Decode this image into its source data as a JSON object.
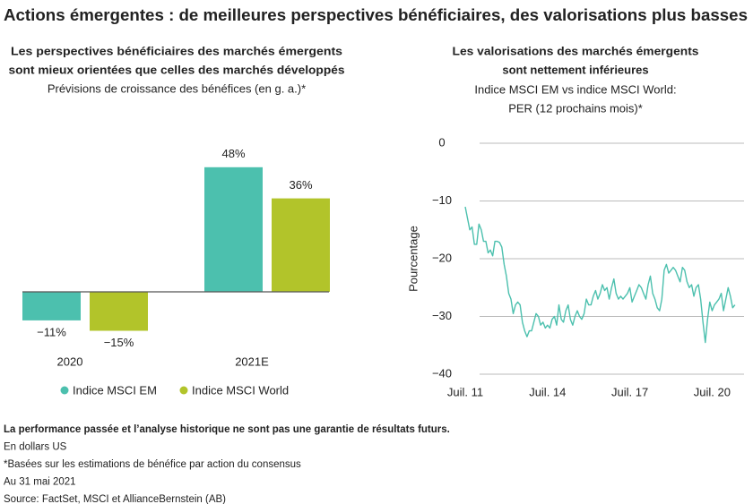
{
  "title": "Actions émergentes : de meilleures perspectives bénéficiaires, des valorisations plus basses",
  "chart_data": [
    {
      "type": "bar",
      "title": [
        "Les perspectives bénéficiaires des marchés émergents",
        "sont mieux orientées que celles des marchés développés"
      ],
      "subtitle": "Prévisions de croissance des bénéfices (en g. a.)*",
      "categories": [
        "2020",
        "2021E"
      ],
      "series": [
        {
          "name": "Indice MSCI EM",
          "color": "#4cc0ae",
          "values": [
            -11,
            48
          ],
          "value_labels": [
            "−11%",
            "48%"
          ]
        },
        {
          "name": "Indice MSCI World",
          "color": "#b2c42a",
          "values": [
            -15,
            36
          ],
          "value_labels": [
            "−15%",
            "36%"
          ]
        }
      ]
    },
    {
      "type": "line",
      "title": [
        "Les valorisations des marchés émergents",
        "sont nettement inférieures"
      ],
      "subtitle": [
        "Indice MSCI EM vs indice MSCI World:",
        "PER (12 prochains mois)*"
      ],
      "ylabel": "Pourcentage",
      "color": "#4cc0ae",
      "grid": true,
      "ylim": [
        -40,
        0
      ],
      "yticks": [
        {
          "value": 0,
          "label": "0"
        },
        {
          "value": -10,
          "label": "−10"
        },
        {
          "value": -20,
          "label": "−20"
        },
        {
          "value": -30,
          "label": "−30"
        },
        {
          "value": -40,
          "label": "−40"
        }
      ],
      "xlim": [
        "2011-07",
        "2021-05"
      ],
      "xticks": [
        {
          "value": "2011-07",
          "label": "Juil. 11"
        },
        {
          "value": "2014-07",
          "label": "Juil. 14"
        },
        {
          "value": "2017-07",
          "label": "Juil. 17"
        },
        {
          "value": "2020-07",
          "label": "Juil. 20"
        }
      ],
      "x": [
        "2011-07",
        "2011-08",
        "2011-09",
        "2011-10",
        "2011-11",
        "2011-12",
        "2012-01",
        "2012-02",
        "2012-03",
        "2012-04",
        "2012-05",
        "2012-06",
        "2012-07",
        "2012-08",
        "2012-09",
        "2012-10",
        "2012-11",
        "2012-12",
        "2013-01",
        "2013-02",
        "2013-03",
        "2013-04",
        "2013-05",
        "2013-06",
        "2013-07",
        "2013-08",
        "2013-09",
        "2013-10",
        "2013-11",
        "2013-12",
        "2014-01",
        "2014-02",
        "2014-03",
        "2014-04",
        "2014-05",
        "2014-06",
        "2014-07",
        "2014-08",
        "2014-09",
        "2014-10",
        "2014-11",
        "2014-12",
        "2015-01",
        "2015-02",
        "2015-03",
        "2015-04",
        "2015-05",
        "2015-06",
        "2015-07",
        "2015-08",
        "2015-09",
        "2015-10",
        "2015-11",
        "2015-12",
        "2016-01",
        "2016-02",
        "2016-03",
        "2016-04",
        "2016-05",
        "2016-06",
        "2016-07",
        "2016-08",
        "2016-09",
        "2016-10",
        "2016-11",
        "2016-12",
        "2017-01",
        "2017-02",
        "2017-03",
        "2017-04",
        "2017-05",
        "2017-06",
        "2017-07",
        "2017-08",
        "2017-09",
        "2017-10",
        "2017-11",
        "2017-12",
        "2018-01",
        "2018-02",
        "2018-03",
        "2018-04",
        "2018-05",
        "2018-06",
        "2018-07",
        "2018-08",
        "2018-09",
        "2018-10",
        "2018-11",
        "2018-12",
        "2019-01",
        "2019-02",
        "2019-03",
        "2019-04",
        "2019-05",
        "2019-06",
        "2019-07",
        "2019-08",
        "2019-09",
        "2019-10",
        "2019-11",
        "2019-12",
        "2020-01",
        "2020-02",
        "2020-03",
        "2020-04",
        "2020-05",
        "2020-06",
        "2020-07",
        "2020-08",
        "2020-09",
        "2020-10",
        "2020-11",
        "2020-12",
        "2021-01",
        "2021-02",
        "2021-03",
        "2021-04",
        "2021-05"
      ],
      "values": [
        -11,
        -13,
        -15,
        -14.5,
        -17.5,
        -17.5,
        -14,
        -15,
        -17,
        -17,
        -19,
        -18.5,
        -19.5,
        -17,
        -17,
        -17.2,
        -18,
        -21,
        -23,
        -26,
        -27,
        -29.5,
        -28,
        -27.5,
        -28,
        -31,
        -32.5,
        -33.5,
        -32.5,
        -32.5,
        -31,
        -29.5,
        -30,
        -31.5,
        -31,
        -32,
        -31.5,
        -32,
        -30.5,
        -30,
        -31.5,
        -28,
        -30.5,
        -31,
        -29,
        -28,
        -30.5,
        -31.5,
        -30,
        -29,
        -30,
        -30.5,
        -29.5,
        -27,
        -28,
        -28,
        -26.5,
        -25.5,
        -27,
        -26,
        -24.5,
        -25.5,
        -25,
        -27,
        -25,
        -23.5,
        -26,
        -27,
        -26.5,
        -27,
        -26.5,
        -26,
        -25,
        -27.5,
        -26.5,
        -25.5,
        -24.5,
        -25,
        -26,
        -27,
        -24.5,
        -23,
        -26,
        -27,
        -28.5,
        -29,
        -27,
        -22,
        -21,
        -22.5,
        -22,
        -21.5,
        -22,
        -23,
        -24,
        -21.5,
        -22,
        -24,
        -25,
        -24.5,
        -26.5,
        -25,
        -24.5,
        -27,
        -31,
        -34.5,
        -30.5,
        -27.5,
        -29,
        -28,
        -27.5,
        -27,
        -26,
        -29,
        -27,
        -25,
        -26.5,
        -28.5,
        -28
      ]
    }
  ],
  "footer": [
    "La performance passée et l’analyse historique ne sont pas une garantie de résultats futurs.",
    "En dollars US",
    "*Basées sur les estimations de bénéfice par action du consensus",
    "Au 31 mai 2021",
    "Source: FactSet, MSCI et AllianceBernstein (AB)"
  ]
}
